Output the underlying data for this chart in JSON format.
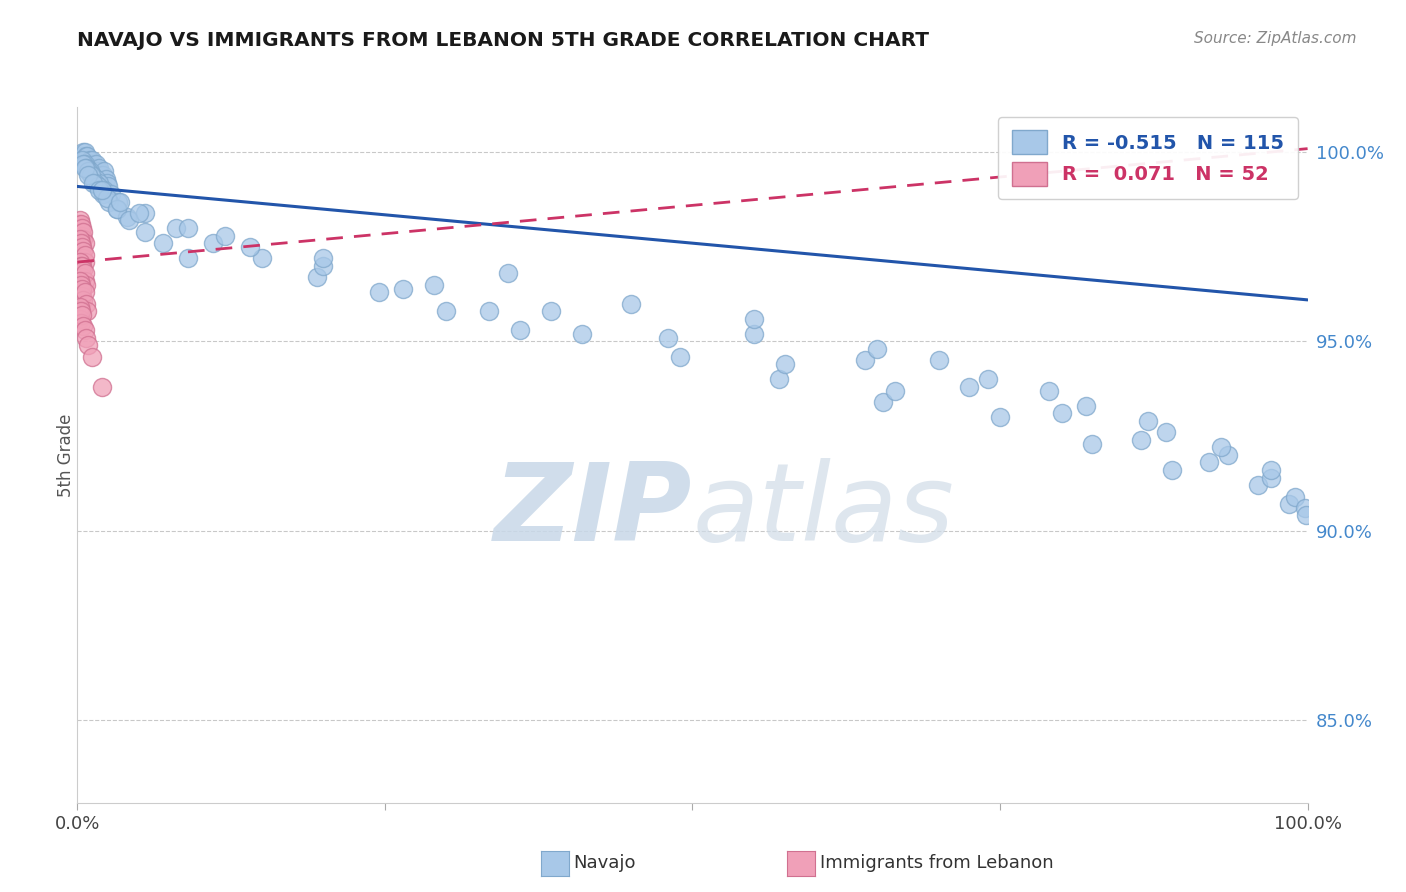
{
  "title": "NAVAJO VS IMMIGRANTS FROM LEBANON 5TH GRADE CORRELATION CHART",
  "source_text": "Source: ZipAtlas.com",
  "ylabel": "5th Grade",
  "xlim": [
    0.0,
    1.0
  ],
  "ylim": [
    0.828,
    1.012
  ],
  "yticks": [
    0.85,
    0.9,
    0.95,
    1.0
  ],
  "ytick_labels": [
    "85.0%",
    "90.0%",
    "95.0%",
    "100.0%"
  ],
  "navajo_R": -0.515,
  "navajo_N": 115,
  "lebanon_R": 0.071,
  "lebanon_N": 52,
  "navajo_color": "#a8c8e8",
  "navajo_edge": "#80a8cc",
  "lebanon_color": "#f0a0b8",
  "lebanon_edge": "#d07090",
  "navajo_line_color": "#2255aa",
  "lebanon_line_color": "#cc3366",
  "background_color": "#ffffff",
  "grid_color": "#bbbbbb",
  "watermark_color": "#ddeeff",
  "legend_navajo": "Navajo",
  "legend_lebanon": "Immigrants from Lebanon",
  "navajo_line_x": [
    0.0,
    1.0
  ],
  "navajo_line_y": [
    0.991,
    0.961
  ],
  "lebanon_line_x": [
    0.0,
    1.0
  ],
  "lebanon_line_y": [
    0.971,
    1.001
  ],
  "navajo_x": [
    0.003,
    0.005,
    0.005,
    0.006,
    0.006,
    0.007,
    0.007,
    0.008,
    0.008,
    0.009,
    0.01,
    0.01,
    0.011,
    0.012,
    0.012,
    0.013,
    0.014,
    0.015,
    0.015,
    0.016,
    0.017,
    0.018,
    0.018,
    0.019,
    0.02,
    0.021,
    0.022,
    0.023,
    0.024,
    0.025,
    0.004,
    0.006,
    0.008,
    0.01,
    0.012,
    0.015,
    0.018,
    0.022,
    0.027,
    0.033,
    0.005,
    0.007,
    0.009,
    0.011,
    0.014,
    0.017,
    0.021,
    0.026,
    0.032,
    0.04,
    0.006,
    0.009,
    0.013,
    0.018,
    0.024,
    0.032,
    0.042,
    0.055,
    0.07,
    0.09,
    0.02,
    0.035,
    0.055,
    0.08,
    0.11,
    0.15,
    0.195,
    0.245,
    0.3,
    0.36,
    0.05,
    0.09,
    0.14,
    0.2,
    0.265,
    0.335,
    0.41,
    0.49,
    0.57,
    0.655,
    0.12,
    0.2,
    0.29,
    0.385,
    0.48,
    0.575,
    0.665,
    0.75,
    0.825,
    0.89,
    0.35,
    0.45,
    0.55,
    0.64,
    0.725,
    0.8,
    0.865,
    0.92,
    0.96,
    0.985,
    0.55,
    0.65,
    0.74,
    0.82,
    0.885,
    0.935,
    0.97,
    0.99,
    0.998,
    0.999,
    0.7,
    0.79,
    0.87,
    0.93,
    0.97
  ],
  "navajo_y": [
    0.999,
    0.999,
    1.0,
    0.998,
    1.0,
    0.999,
    0.997,
    0.998,
    0.999,
    0.997,
    0.997,
    0.998,
    0.996,
    0.997,
    0.998,
    0.995,
    0.996,
    0.997,
    0.995,
    0.994,
    0.994,
    0.995,
    0.996,
    0.994,
    0.993,
    0.994,
    0.995,
    0.993,
    0.992,
    0.991,
    0.998,
    0.997,
    0.996,
    0.995,
    0.994,
    0.993,
    0.992,
    0.99,
    0.989,
    0.987,
    0.997,
    0.996,
    0.995,
    0.994,
    0.992,
    0.991,
    0.989,
    0.987,
    0.985,
    0.983,
    0.996,
    0.994,
    0.992,
    0.99,
    0.988,
    0.985,
    0.982,
    0.979,
    0.976,
    0.972,
    0.99,
    0.987,
    0.984,
    0.98,
    0.976,
    0.972,
    0.967,
    0.963,
    0.958,
    0.953,
    0.984,
    0.98,
    0.975,
    0.97,
    0.964,
    0.958,
    0.952,
    0.946,
    0.94,
    0.934,
    0.978,
    0.972,
    0.965,
    0.958,
    0.951,
    0.944,
    0.937,
    0.93,
    0.923,
    0.916,
    0.968,
    0.96,
    0.952,
    0.945,
    0.938,
    0.931,
    0.924,
    0.918,
    0.912,
    0.907,
    0.956,
    0.948,
    0.94,
    0.933,
    0.926,
    0.92,
    0.914,
    0.909,
    0.906,
    0.904,
    0.945,
    0.937,
    0.929,
    0.922,
    0.916
  ],
  "lebanon_x": [
    0.001,
    0.002,
    0.002,
    0.003,
    0.003,
    0.004,
    0.004,
    0.005,
    0.005,
    0.006,
    0.001,
    0.002,
    0.002,
    0.003,
    0.003,
    0.004,
    0.005,
    0.005,
    0.006,
    0.006,
    0.001,
    0.002,
    0.003,
    0.003,
    0.004,
    0.004,
    0.005,
    0.006,
    0.006,
    0.007,
    0.001,
    0.002,
    0.002,
    0.003,
    0.004,
    0.004,
    0.005,
    0.006,
    0.007,
    0.008,
    0.001,
    0.002,
    0.002,
    0.003,
    0.003,
    0.004,
    0.005,
    0.006,
    0.007,
    0.009,
    0.012,
    0.02
  ],
  "lebanon_y": [
    0.981,
    0.98,
    0.982,
    0.979,
    0.981,
    0.978,
    0.98,
    0.977,
    0.979,
    0.976,
    0.975,
    0.977,
    0.974,
    0.976,
    0.973,
    0.975,
    0.972,
    0.974,
    0.971,
    0.973,
    0.969,
    0.971,
    0.97,
    0.968,
    0.97,
    0.967,
    0.969,
    0.966,
    0.968,
    0.965,
    0.964,
    0.966,
    0.963,
    0.965,
    0.962,
    0.964,
    0.961,
    0.963,
    0.96,
    0.958,
    0.958,
    0.959,
    0.956,
    0.958,
    0.955,
    0.957,
    0.954,
    0.953,
    0.951,
    0.949,
    0.946,
    0.938
  ]
}
